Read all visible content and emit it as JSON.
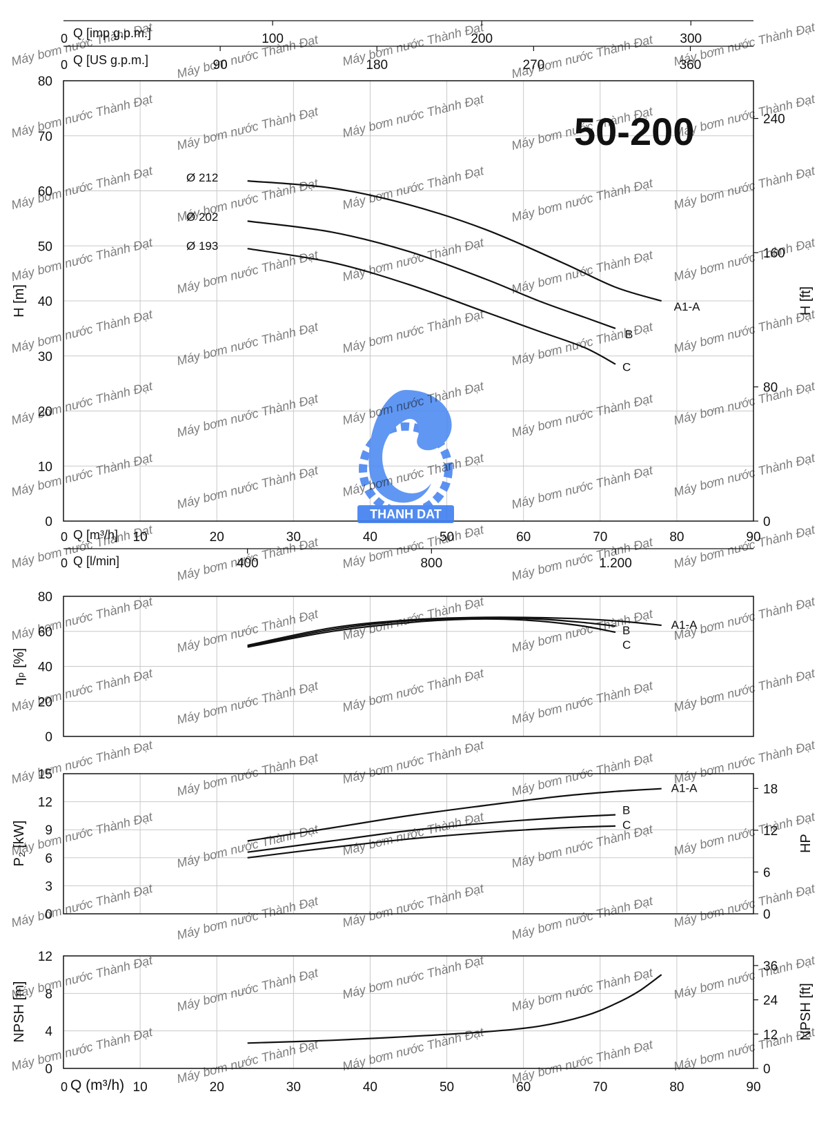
{
  "title": "50-200",
  "watermark_text": "Máy bơm nước Thành Đạt",
  "logo": {
    "text": "THANH DAT",
    "color": "#3f7ff0"
  },
  "colors": {
    "axis": "#111111",
    "grid": "#c8c8c8",
    "curve": "#111111",
    "watermark": "#4a4ad8"
  },
  "chart_data": [
    {
      "id": "head",
      "type": "line",
      "xlabel": "Q [m³/h]",
      "x_zero_label": "0",
      "xlim": [
        0,
        90
      ],
      "xticks": [
        "10",
        "20",
        "30",
        "40",
        "50",
        "60",
        "70",
        "80",
        "90"
      ],
      "ylabel": "H [m]",
      "ylim": [
        0,
        80
      ],
      "yticks": [
        "0",
        "10",
        "20",
        "30",
        "40",
        "50",
        "60",
        "70",
        "80"
      ],
      "ylabel_right": "H [ft]",
      "right_ticks": [
        {
          "value": 0,
          "label": "0"
        },
        {
          "value": 80,
          "label": "80"
        },
        {
          "value": 160,
          "label": "160"
        },
        {
          "value": 240,
          "label": "240"
        }
      ],
      "right_factor": 3.2808,
      "top_axes": [
        {
          "label": "Q [imp g.p.m.]",
          "zero": "0",
          "factor": 3.666,
          "ticks": [
            {
              "value": 100,
              "label": "100"
            },
            {
              "value": 200,
              "label": "200"
            },
            {
              "value": 300,
              "label": "300"
            }
          ]
        },
        {
          "label": "Q [US g.p.m.]",
          "zero": "0",
          "factor": 4.403,
          "ticks": [
            {
              "value": 90,
              "label": "90"
            },
            {
              "value": 180,
              "label": "180"
            },
            {
              "value": 270,
              "label": "270"
            },
            {
              "value": 360,
              "label": "360"
            }
          ]
        }
      ],
      "bottom_extra_axis": {
        "label": "Q [l/min]",
        "zero": "0",
        "factor": 16.6667,
        "ticks": [
          {
            "value": 400,
            "label": "400"
          },
          {
            "value": 800,
            "label": "800"
          },
          {
            "value": 1200,
            "label": "1.200"
          }
        ]
      },
      "diameter_labels": [
        "Ø 212",
        "Ø 202",
        "Ø 193"
      ],
      "series": [
        {
          "name": "A1-A",
          "points": [
            [
              24,
              61.8
            ],
            [
              35,
              60.5
            ],
            [
              45,
              57.5
            ],
            [
              55,
              53
            ],
            [
              65,
              47
            ],
            [
              72,
              42.5
            ],
            [
              78,
              40
            ]
          ]
        },
        {
          "name": "B",
          "points": [
            [
              24,
              54.5
            ],
            [
              35,
              52.5
            ],
            [
              45,
              49
            ],
            [
              55,
              44
            ],
            [
              62,
              40
            ],
            [
              68,
              37
            ],
            [
              72,
              35
            ]
          ]
        },
        {
          "name": "C",
          "points": [
            [
              24,
              49.5
            ],
            [
              35,
              47
            ],
            [
              45,
              43
            ],
            [
              55,
              38
            ],
            [
              62,
              34.5
            ],
            [
              68,
              31.5
            ],
            [
              72,
              28.5
            ]
          ]
        }
      ]
    },
    {
      "id": "efficiency",
      "type": "line",
      "ylabel": "ηₚ [%]",
      "xlim": [
        0,
        90
      ],
      "ylim": [
        0,
        80
      ],
      "yticks": [
        "0",
        "20",
        "40",
        "60",
        "80"
      ],
      "series": [
        {
          "name": "A1-A",
          "points": [
            [
              24,
              52
            ],
            [
              35,
              62
            ],
            [
              45,
              66.5
            ],
            [
              55,
              68
            ],
            [
              65,
              67.5
            ],
            [
              72,
              66
            ],
            [
              78,
              63.5
            ]
          ]
        },
        {
          "name": "B",
          "points": [
            [
              24,
              51.5
            ],
            [
              35,
              61
            ],
            [
              45,
              66
            ],
            [
              55,
              67.5
            ],
            [
              62,
              67
            ],
            [
              68,
              65
            ],
            [
              72,
              63
            ]
          ]
        },
        {
          "name": "C",
          "points": [
            [
              24,
              51
            ],
            [
              35,
              60
            ],
            [
              45,
              65
            ],
            [
              53,
              67
            ],
            [
              60,
              66.5
            ],
            [
              67,
              63.5
            ],
            [
              72,
              59.5
            ]
          ]
        }
      ]
    },
    {
      "id": "power",
      "type": "line",
      "ylabel": "P₂ [kW]",
      "xlim": [
        0,
        90
      ],
      "ylim": [
        0,
        15
      ],
      "yticks": [
        "0",
        "3",
        "6",
        "9",
        "12",
        "15"
      ],
      "ylabel_right": "HP",
      "right_ticks": [
        {
          "value": 0,
          "label": "0"
        },
        {
          "value": 6,
          "label": "6"
        },
        {
          "value": 12,
          "label": "12"
        },
        {
          "value": 18,
          "label": "18"
        }
      ],
      "right_factor": 1.341,
      "series": [
        {
          "name": "A1-A",
          "points": [
            [
              24,
              7.8
            ],
            [
              35,
              9.2
            ],
            [
              45,
              10.5
            ],
            [
              55,
              11.6
            ],
            [
              65,
              12.6
            ],
            [
              72,
              13.1
            ],
            [
              78,
              13.4
            ]
          ]
        },
        {
          "name": "B",
          "points": [
            [
              24,
              6.6
            ],
            [
              35,
              7.8
            ],
            [
              45,
              8.9
            ],
            [
              55,
              9.7
            ],
            [
              65,
              10.3
            ],
            [
              72,
              10.6
            ]
          ]
        },
        {
          "name": "C",
          "points": [
            [
              24,
              6.0
            ],
            [
              35,
              7.1
            ],
            [
              45,
              8.0
            ],
            [
              55,
              8.7
            ],
            [
              65,
              9.2
            ],
            [
              72,
              9.4
            ]
          ]
        }
      ]
    },
    {
      "id": "npsh",
      "type": "line",
      "ylabel": "NPSH [m]",
      "xlabel": "Q (m³/h)",
      "x_zero_label": "0",
      "xlim": [
        0,
        90
      ],
      "xticks": [
        "10",
        "20",
        "30",
        "40",
        "50",
        "60",
        "70",
        "80",
        "90"
      ],
      "ylim": [
        0,
        12
      ],
      "yticks": [
        "0",
        "4",
        "8",
        "12"
      ],
      "ylabel_right": "NPSH [ft]",
      "right_ticks": [
        {
          "value": 0,
          "label": "0"
        },
        {
          "value": 12,
          "label": "12"
        },
        {
          "value": 24,
          "label": "24"
        },
        {
          "value": 36,
          "label": "36"
        }
      ],
      "right_factor": 3.2808,
      "series": [
        {
          "points": [
            [
              24,
              2.7
            ],
            [
              35,
              3.0
            ],
            [
              45,
              3.4
            ],
            [
              55,
              3.9
            ],
            [
              62,
              4.5
            ],
            [
              68,
              5.6
            ],
            [
              72,
              6.9
            ],
            [
              75,
              8.2
            ],
            [
              78,
              10
            ]
          ]
        }
      ]
    }
  ]
}
